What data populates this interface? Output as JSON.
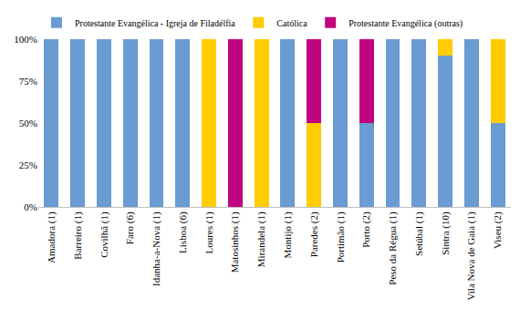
{
  "chart_data": {
    "type": "bar",
    "stacked": true,
    "legend": "top",
    "grid": false,
    "categories": [
      "Amadora (1)",
      "Barreiro (1)",
      "Covilhã (1)",
      "Faro (6)",
      "Idanha-a-Nova (1)",
      "Lisboa (6)",
      "Loures (1)",
      "Matosinhos (1)",
      "Mirandela (1)",
      "Montijo (1)",
      "Paredes (2)",
      "Portimão (1)",
      "Porto (2)",
      "Peso da Régua (1)",
      "Setúbal (1)",
      "Sintra (10)",
      "Vila Nova de Gaia (1)",
      "Viseu (2)"
    ],
    "series": [
      {
        "name": "Protestante Evangélica - Igreja de Filadélfia",
        "color": "#6a9bd2",
        "values": [
          100,
          100,
          100,
          100,
          100,
          100,
          0,
          0,
          0,
          100,
          0,
          100,
          50,
          100,
          100,
          90,
          100,
          50
        ]
      },
      {
        "name": "Católica",
        "color": "#ffcc00",
        "values": [
          0,
          0,
          0,
          0,
          0,
          0,
          100,
          0,
          100,
          0,
          50,
          0,
          0,
          0,
          0,
          10,
          0,
          50
        ]
      },
      {
        "name": "Protestante Evangélica (outras)",
        "color": "#c0047f",
        "values": [
          0,
          0,
          0,
          0,
          0,
          0,
          0,
          100,
          0,
          0,
          50,
          0,
          50,
          0,
          0,
          0,
          0,
          0
        ]
      }
    ],
    "ylim": [
      0,
      100
    ],
    "yticks": [
      {
        "value": 0,
        "label": "0%"
      },
      {
        "value": 25,
        "label": "25%"
      },
      {
        "value": 50,
        "label": "50%"
      },
      {
        "value": 75,
        "label": "75%"
      },
      {
        "value": 100,
        "label": "100%"
      }
    ]
  }
}
